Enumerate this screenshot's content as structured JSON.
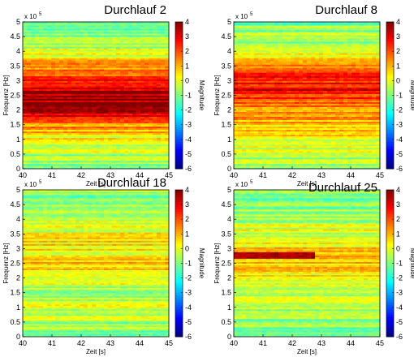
{
  "chart_data": [
    {
      "type": "heatmap",
      "title": "Durchlauf 2",
      "xlabel": "Zeit [s]",
      "ylabel": "Frequenz [Hz]",
      "colorbar_label": "Magnitude",
      "y_exponent": "x 10",
      "y_exponent_power": "5",
      "xlim": [
        40,
        45
      ],
      "ylim": [
        0,
        5
      ],
      "clim": [
        -6,
        4
      ],
      "x_ticks": [
        40,
        41,
        42,
        43,
        44,
        45
      ],
      "y_ticks": [
        0,
        0.5,
        1,
        1.5,
        2,
        2.5,
        3,
        3.5,
        4,
        4.5,
        5
      ],
      "c_ticks": [
        4,
        3,
        2,
        1,
        0,
        -1,
        -2,
        -3,
        -4,
        -5,
        -6
      ],
      "profile": [
        {
          "f": 0.0,
          "v": -1.0
        },
        {
          "f": 0.3,
          "v": -0.6
        },
        {
          "f": 0.6,
          "v": -0.3
        },
        {
          "f": 1.0,
          "v": 0.2
        },
        {
          "f": 1.3,
          "v": 0.9
        },
        {
          "f": 1.6,
          "v": 1.8
        },
        {
          "f": 1.9,
          "v": 3.0
        },
        {
          "f": 2.2,
          "v": 3.6
        },
        {
          "f": 2.5,
          "v": 3.7
        },
        {
          "f": 2.8,
          "v": 3.2
        },
        {
          "f": 3.1,
          "v": 2.4
        },
        {
          "f": 3.4,
          "v": 1.5
        },
        {
          "f": 3.7,
          "v": 0.5
        },
        {
          "f": 4.0,
          "v": -0.3
        },
        {
          "f": 4.3,
          "v": -0.6
        },
        {
          "f": 4.6,
          "v": -0.9
        },
        {
          "f": 5.0,
          "v": -1.1
        }
      ]
    },
    {
      "type": "heatmap",
      "title": "Durchlauf 8",
      "xlabel": "Zeit [s]",
      "ylabel": "Frequenz [Hz]",
      "colorbar_label": "Magnitude",
      "y_exponent": "x 10",
      "y_exponent_power": "5",
      "xlim": [
        40,
        45
      ],
      "ylim": [
        0,
        5
      ],
      "clim": [
        -6,
        4
      ],
      "x_ticks": [
        40,
        41,
        42,
        43,
        44,
        45
      ],
      "y_ticks": [
        0,
        0.5,
        1,
        1.5,
        2,
        2.5,
        3,
        3.5,
        4,
        4.5,
        5
      ],
      "c_ticks": [
        4,
        3,
        2,
        1,
        0,
        -1,
        -2,
        -3,
        -4,
        -5,
        -6
      ],
      "profile": [
        {
          "f": 0.0,
          "v": -1.0
        },
        {
          "f": 0.4,
          "v": -0.5
        },
        {
          "f": 0.8,
          "v": 0.0
        },
        {
          "f": 1.2,
          "v": 0.4
        },
        {
          "f": 1.6,
          "v": 0.9
        },
        {
          "f": 2.0,
          "v": 1.6
        },
        {
          "f": 2.4,
          "v": 2.3
        },
        {
          "f": 2.7,
          "v": 2.8
        },
        {
          "f": 3.0,
          "v": 2.7
        },
        {
          "f": 3.3,
          "v": 2.3
        },
        {
          "f": 3.6,
          "v": 1.0
        },
        {
          "f": 4.0,
          "v": -0.3
        },
        {
          "f": 4.5,
          "v": -0.8
        },
        {
          "f": 5.0,
          "v": -1.0
        }
      ]
    },
    {
      "type": "heatmap",
      "title": "Durchlauf 18",
      "xlabel": "Zeit [s]",
      "ylabel": "Frequenz [Hz]",
      "colorbar_label": "Magnitude",
      "y_exponent": "x 10",
      "y_exponent_power": "5",
      "xlim": [
        40,
        45
      ],
      "ylim": [
        0,
        5
      ],
      "clim": [
        -6,
        4
      ],
      "x_ticks": [
        40,
        41,
        42,
        43,
        44,
        45
      ],
      "y_ticks": [
        0,
        0.5,
        1,
        1.5,
        2,
        2.5,
        3,
        3.5,
        4,
        4.5,
        5
      ],
      "c_ticks": [
        4,
        3,
        2,
        1,
        0,
        -1,
        -2,
        -3,
        -4,
        -5,
        -6
      ],
      "profile": [
        {
          "f": 0.0,
          "v": -1.0
        },
        {
          "f": 0.5,
          "v": -0.6
        },
        {
          "f": 1.0,
          "v": -0.2
        },
        {
          "f": 1.5,
          "v": -0.5
        },
        {
          "f": 2.0,
          "v": 0.2
        },
        {
          "f": 2.5,
          "v": 0.5
        },
        {
          "f": 3.0,
          "v": 0.4
        },
        {
          "f": 3.5,
          "v": 0.2
        },
        {
          "f": 4.0,
          "v": -0.5
        },
        {
          "f": 4.5,
          "v": -0.7
        },
        {
          "f": 5.0,
          "v": -0.9
        }
      ]
    },
    {
      "type": "heatmap",
      "title": "Durchlauf 25",
      "xlabel": "Zeit [s]",
      "ylabel": "Frequenz [Hz]",
      "colorbar_label": "Magnitude",
      "y_exponent": "x 10",
      "y_exponent_power": "5",
      "xlim": [
        40,
        45
      ],
      "ylim": [
        0,
        5
      ],
      "clim": [
        -6,
        4
      ],
      "x_ticks": [
        40,
        41,
        42,
        43,
        44,
        45
      ],
      "y_ticks": [
        0,
        0.5,
        1,
        1.5,
        2,
        2.5,
        3,
        3.5,
        4,
        4.5,
        5
      ],
      "c_ticks": [
        4,
        3,
        2,
        1,
        0,
        -1,
        -2,
        -3,
        -4,
        -5,
        -6
      ],
      "profile": [
        {
          "f": 0.0,
          "v": -1.2
        },
        {
          "f": 0.5,
          "v": -0.8
        },
        {
          "f": 1.0,
          "v": -0.3
        },
        {
          "f": 1.5,
          "v": -0.2
        },
        {
          "f": 2.0,
          "v": 0.2
        },
        {
          "f": 2.5,
          "v": 0.5
        },
        {
          "f": 2.8,
          "v": 1.5
        },
        {
          "f": 3.0,
          "v": 0.6
        },
        {
          "f": 3.5,
          "v": 0.0
        },
        {
          "f": 4.0,
          "v": -0.5
        },
        {
          "f": 4.5,
          "v": -0.9
        },
        {
          "f": 5.0,
          "v": -1.0
        }
      ],
      "feature": {
        "f": 2.78,
        "v": 3.6,
        "t_start": 40,
        "t_end": 42.8
      }
    }
  ]
}
